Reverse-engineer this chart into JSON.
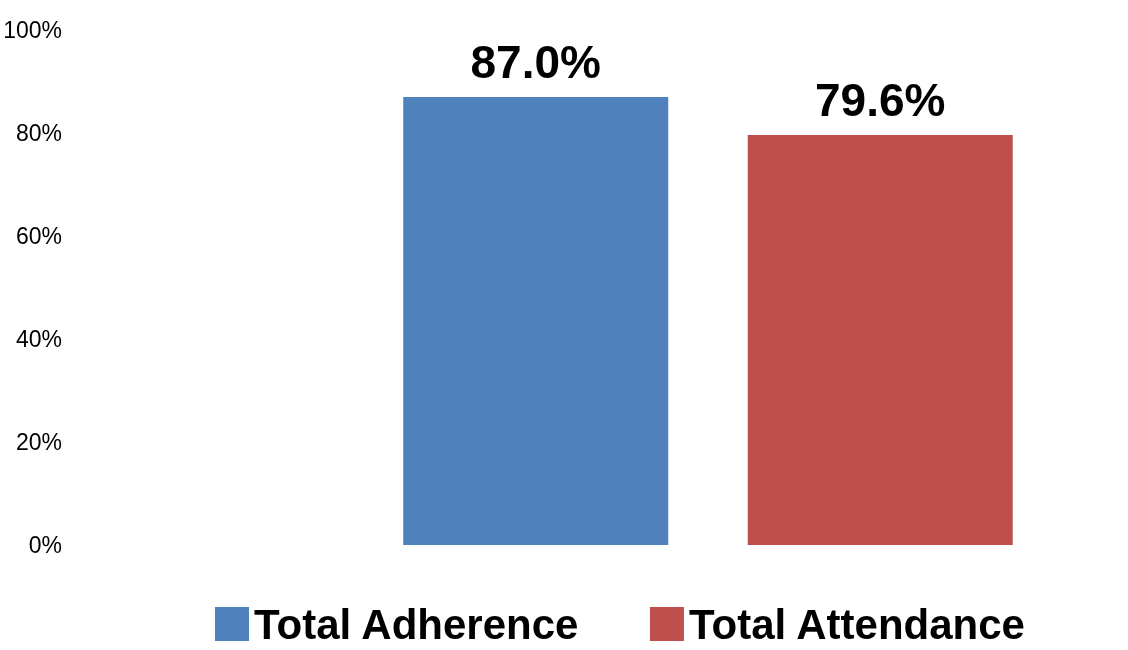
{
  "chart_data": {
    "type": "bar",
    "categories": [
      null
    ],
    "series": [
      {
        "name": "Total Adherence",
        "color": "#4f81bd",
        "values": [
          87.0
        ],
        "value_labels": [
          "87.0%"
        ]
      },
      {
        "name": "Total Attendance",
        "color": "#c0504d",
        "values": [
          79.6
        ],
        "value_labels": [
          "79.6%"
        ]
      }
    ],
    "ylim": [
      0,
      100
    ],
    "yticks": [
      {
        "value": 0,
        "label": "0%"
      },
      {
        "value": 20,
        "label": "20%"
      },
      {
        "value": 40,
        "label": "40%"
      },
      {
        "value": 60,
        "label": "60%"
      },
      {
        "value": 80,
        "label": "80%"
      },
      {
        "value": 100,
        "label": "100%"
      }
    ],
    "grid": false,
    "legend": "bottom"
  }
}
